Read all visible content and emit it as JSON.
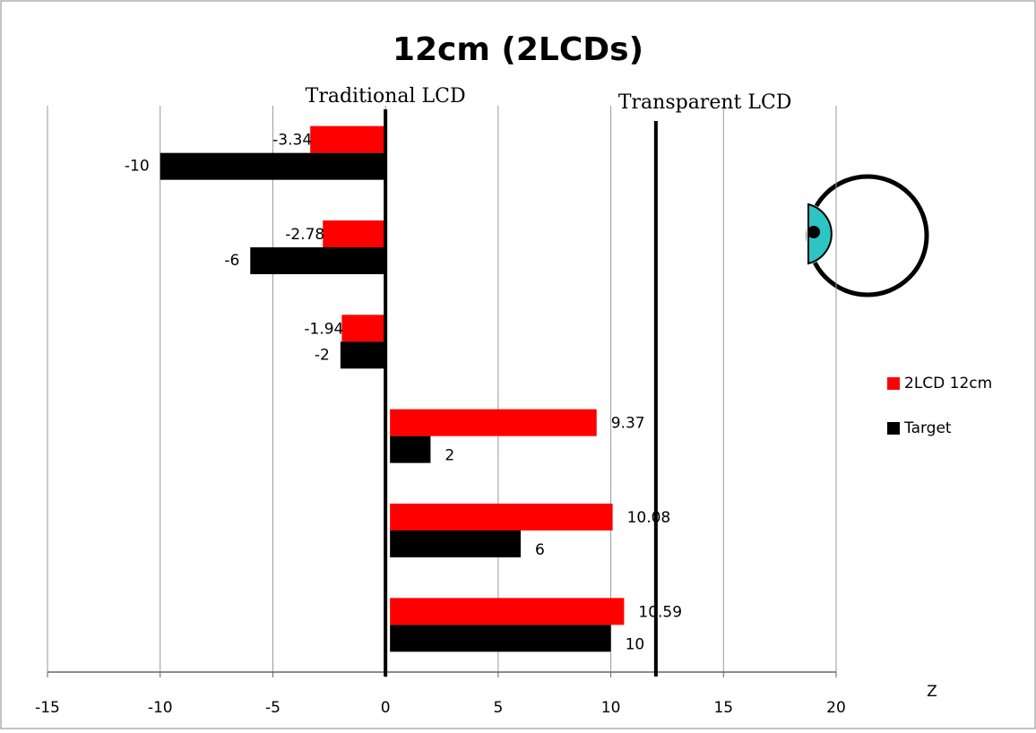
{
  "chart_data": {
    "type": "bar",
    "orientation": "horizontal",
    "title": "12cm (2LCDs)",
    "x_label": "Z",
    "categories": [
      null,
      null,
      null,
      null,
      null,
      null
    ],
    "series": [
      {
        "name": "2LCD 12cm",
        "color": "#ff0000",
        "values": [
          -3.34,
          -2.78,
          -1.94,
          9.37,
          10.08,
          10.59
        ]
      },
      {
        "name": "Target",
        "color": "#000000",
        "values": [
          -10,
          -6,
          -2,
          2,
          6,
          10
        ]
      }
    ],
    "xlim": [
      -15,
      20
    ],
    "xticks": [
      -15,
      -10,
      -5,
      0,
      5,
      10,
      15,
      20
    ],
    "grid": true,
    "legend": "right",
    "annotations": [
      {
        "text": "Traditional LCD",
        "x": 0
      },
      {
        "text": "Transparent LCD",
        "x": 12
      }
    ]
  }
}
